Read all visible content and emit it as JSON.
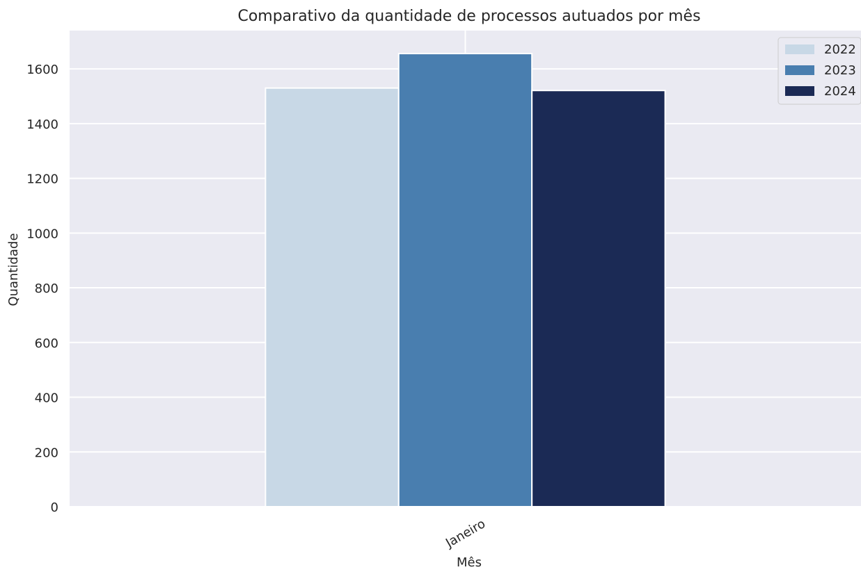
{
  "chart_data": {
    "type": "bar",
    "title": "Comparativo da quantidade de processos autuados por mês",
    "xlabel": "Mês",
    "ylabel": "Quantidade",
    "categories": [
      "Janeiro"
    ],
    "series": [
      {
        "name": "2022",
        "values": [
          1530
        ],
        "color": "#c8d8e6"
      },
      {
        "name": "2023",
        "values": [
          1656
        ],
        "color": "#497eaf"
      },
      {
        "name": "2024",
        "values": [
          1521
        ],
        "color": "#1b2a55"
      }
    ],
    "ylim": [
      0,
      1740
    ],
    "yticks": [
      0,
      200,
      400,
      600,
      800,
      1000,
      1200,
      1400,
      1600
    ],
    "grid": true,
    "legend_position": "top-right",
    "background_color": "#eaeaf2"
  }
}
